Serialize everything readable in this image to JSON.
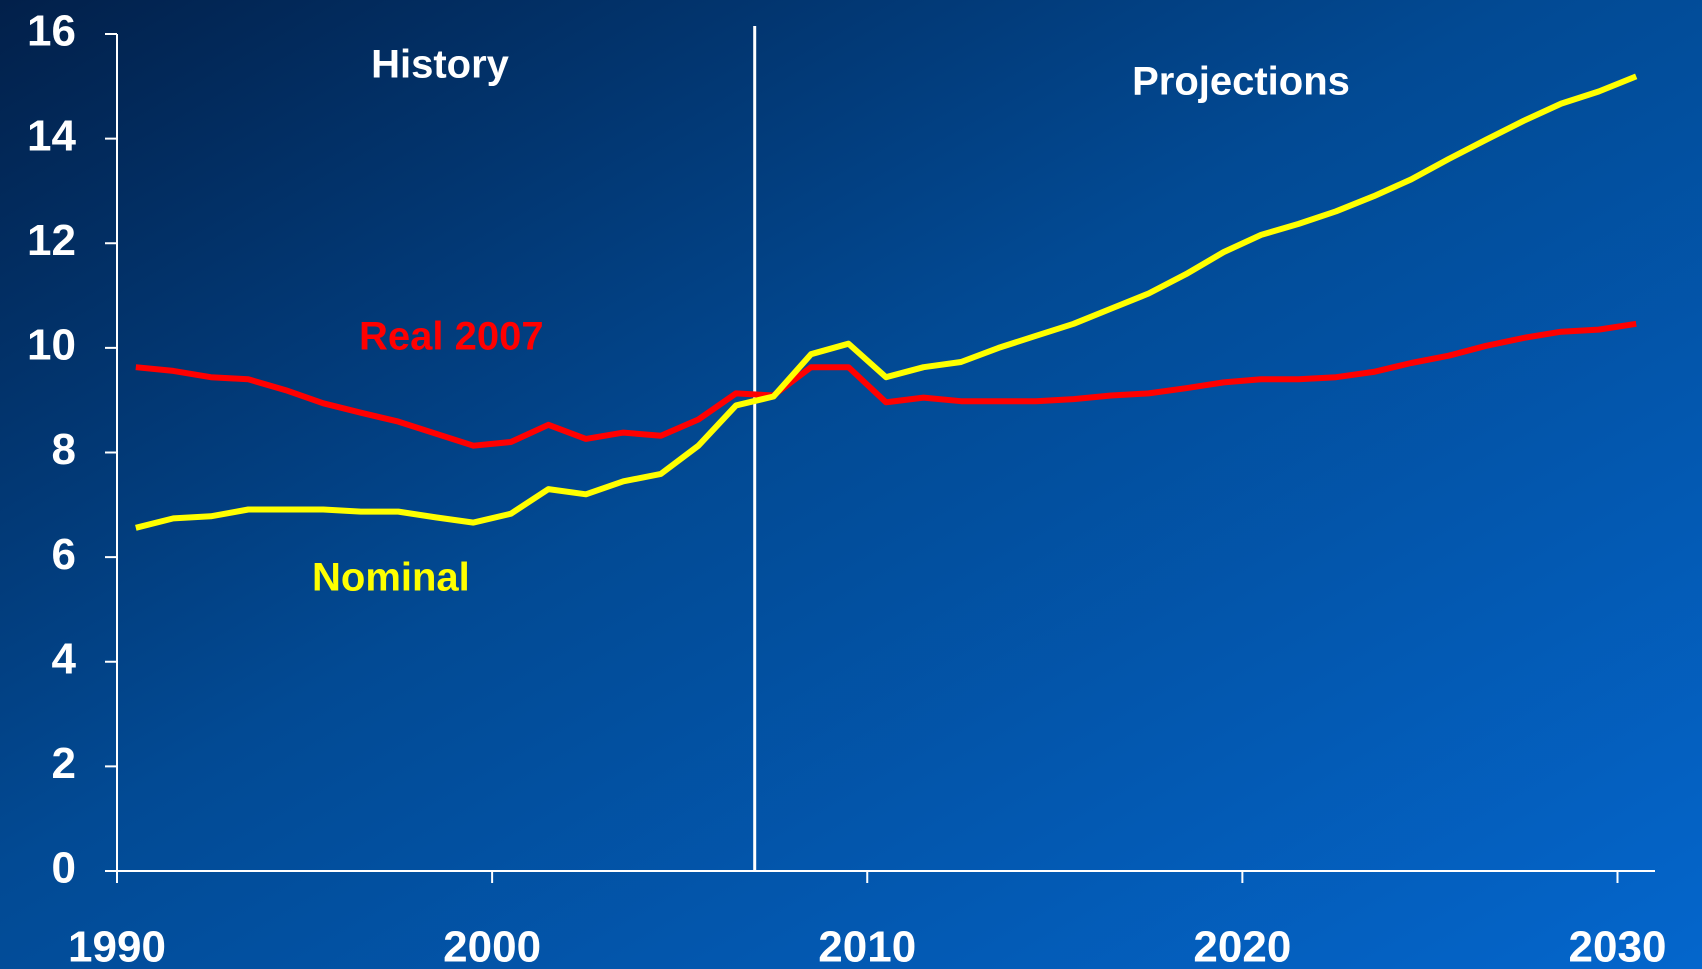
{
  "chart_data": {
    "type": "line",
    "x": [
      1990.5,
      1991.5,
      1992.5,
      1993.5,
      1994.5,
      1995.5,
      1996.5,
      1997.5,
      1998.5,
      1999.5,
      2000.5,
      2001.5,
      2002.5,
      2003.5,
      2004.5,
      2005.5,
      2006.5,
      2007.5,
      2008.5,
      2009.5,
      2010.5,
      2011.5,
      2012.5,
      2013.5,
      2014.5,
      2015.5,
      2016.5,
      2017.5,
      2018.5,
      2019.5,
      2020.5,
      2021.5,
      2022.5,
      2023.5,
      2024.5,
      2025.5,
      2026.5,
      2027.5,
      2028.5,
      2029.5,
      2030.5
    ],
    "series": [
      {
        "name": "Real 2007",
        "color": "#ff0000",
        "values": [
          9.63,
          9.56,
          9.44,
          9.4,
          9.19,
          8.94,
          8.76,
          8.59,
          8.36,
          8.13,
          8.2,
          8.53,
          8.26,
          8.38,
          8.32,
          8.63,
          9.13,
          9.09,
          9.63,
          9.63,
          8.96,
          9.05,
          8.98,
          8.98,
          8.98,
          9.02,
          9.09,
          9.13,
          9.23,
          9.34,
          9.4,
          9.4,
          9.44,
          9.54,
          9.71,
          9.85,
          10.04,
          10.19,
          10.31,
          10.35,
          10.46
        ]
      },
      {
        "name": "Nominal",
        "color": "#ffff00",
        "values": [
          6.56,
          6.74,
          6.78,
          6.91,
          6.91,
          6.91,
          6.87,
          6.87,
          6.76,
          6.66,
          6.83,
          7.3,
          7.2,
          7.45,
          7.59,
          8.13,
          8.9,
          9.07,
          9.88,
          10.08,
          9.44,
          9.63,
          9.73,
          10.0,
          10.23,
          10.46,
          10.75,
          11.04,
          11.41,
          11.83,
          12.16,
          12.37,
          12.61,
          12.9,
          13.22,
          13.61,
          13.98,
          14.34,
          14.67,
          14.9,
          15.19
        ]
      }
    ],
    "annotations": [
      {
        "text": "History"
      },
      {
        "text": "Projections"
      }
    ],
    "divider_x": 2007,
    "xlim": [
      1990,
      2031
    ],
    "xticks": [
      1990,
      2000,
      2010,
      2020,
      2030
    ],
    "ylim": [
      0,
      16
    ],
    "yticks": [
      0,
      2,
      4,
      6,
      8,
      10,
      12,
      14,
      16
    ]
  }
}
